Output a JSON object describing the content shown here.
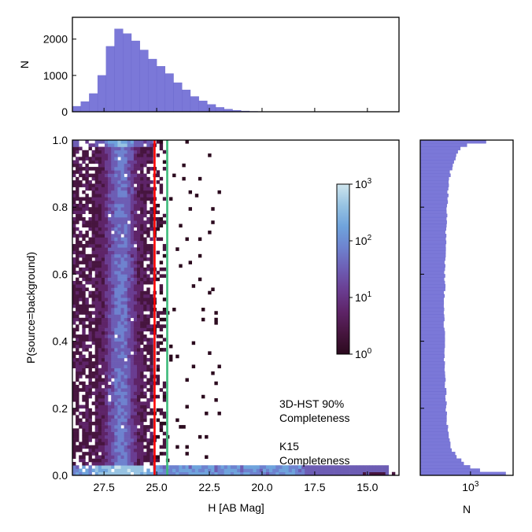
{
  "colors": {
    "hist_fill": "#7b78d8",
    "hist_edge": "#6a67cc",
    "line_3dhst": "#ff0000",
    "line_k15": "#3cba7a",
    "text_3dhst": "#ff0000",
    "text_k15": "#3cba7a",
    "cmap": [
      "#2b0a1e",
      "#47153f",
      "#5e2468",
      "#6a3d91",
      "#6d5db4",
      "#6e82cf",
      "#6fa3dc",
      "#97c3e2",
      "#cfe6ee"
    ]
  },
  "chart_data": [
    {
      "panel": "top-histogram",
      "type": "bar",
      "xlabel": "",
      "ylabel": "N",
      "xlim": [
        29,
        13.5
      ],
      "ylim": [
        0,
        2600
      ],
      "yticks": [
        0,
        1000,
        2000
      ],
      "bin_centers": [
        28.8,
        28.4,
        28.0,
        27.6,
        27.2,
        26.8,
        26.4,
        26.0,
        25.6,
        25.2,
        24.8,
        24.4,
        24.0,
        23.6,
        23.2,
        22.8,
        22.4,
        22.0,
        21.6,
        21.2,
        20.8,
        20.4,
        20.0,
        19.6,
        19.2
      ],
      "values": [
        150,
        280,
        500,
        1000,
        1800,
        2280,
        2150,
        1950,
        1700,
        1450,
        1250,
        1050,
        800,
        600,
        420,
        300,
        200,
        120,
        70,
        40,
        20,
        10,
        5,
        3,
        1
      ]
    },
    {
      "panel": "main-2d-histogram",
      "type": "heatmap",
      "xlabel": "H [AB Mag]",
      "ylabel": "P(source=background)",
      "xlim": [
        29,
        13.5
      ],
      "ylim": [
        0,
        1
      ],
      "xticks": [
        27.5,
        25.0,
        22.5,
        20.0,
        17.5,
        15.0
      ],
      "xtick_labels": [
        "27.5",
        "25.0",
        "22.5",
        "20.0",
        "17.5",
        "15.0"
      ],
      "yticks": [
        0.0,
        0.2,
        0.4,
        0.6,
        0.8,
        1.0
      ],
      "ytick_labels": [
        "0.0",
        "0.2",
        "0.4",
        "0.6",
        "0.8",
        "1.0"
      ],
      "colorbar": {
        "scale": "log",
        "range": [
          1,
          1000
        ],
        "tick_bases": [
          "10",
          "10",
          "10",
          "10"
        ],
        "tick_exponents": [
          "0",
          "1",
          "2",
          "3"
        ]
      },
      "vertical_lines": [
        {
          "x": 25.1,
          "label_lines": [
            "3D-HST 90%",
            "Completeness"
          ]
        },
        {
          "x": 24.5,
          "label_lines": [
            "K15",
            "Completeness"
          ]
        }
      ]
    },
    {
      "panel": "right-histogram",
      "type": "bar",
      "orientation": "horizontal",
      "xlabel": "N",
      "xscale": "log",
      "xlim": [
        150,
        5000
      ],
      "xtick_base": "10",
      "xtick_exponent": "3",
      "ylim": [
        0,
        1
      ],
      "bin_centers": [
        0.005,
        0.015,
        0.025,
        0.035,
        0.045,
        0.055,
        0.065,
        0.075,
        0.085,
        0.095,
        0.12,
        0.16,
        0.2,
        0.25,
        0.3,
        0.4,
        0.5,
        0.6,
        0.7,
        0.8,
        0.85,
        0.9,
        0.93,
        0.96,
        0.975,
        0.985,
        0.995
      ],
      "values": [
        3800,
        1400,
        1000,
        800,
        700,
        600,
        550,
        500,
        480,
        460,
        430,
        410,
        400,
        390,
        380,
        370,
        370,
        380,
        390,
        410,
        430,
        460,
        520,
        600,
        700,
        900,
        1800
      ]
    }
  ]
}
